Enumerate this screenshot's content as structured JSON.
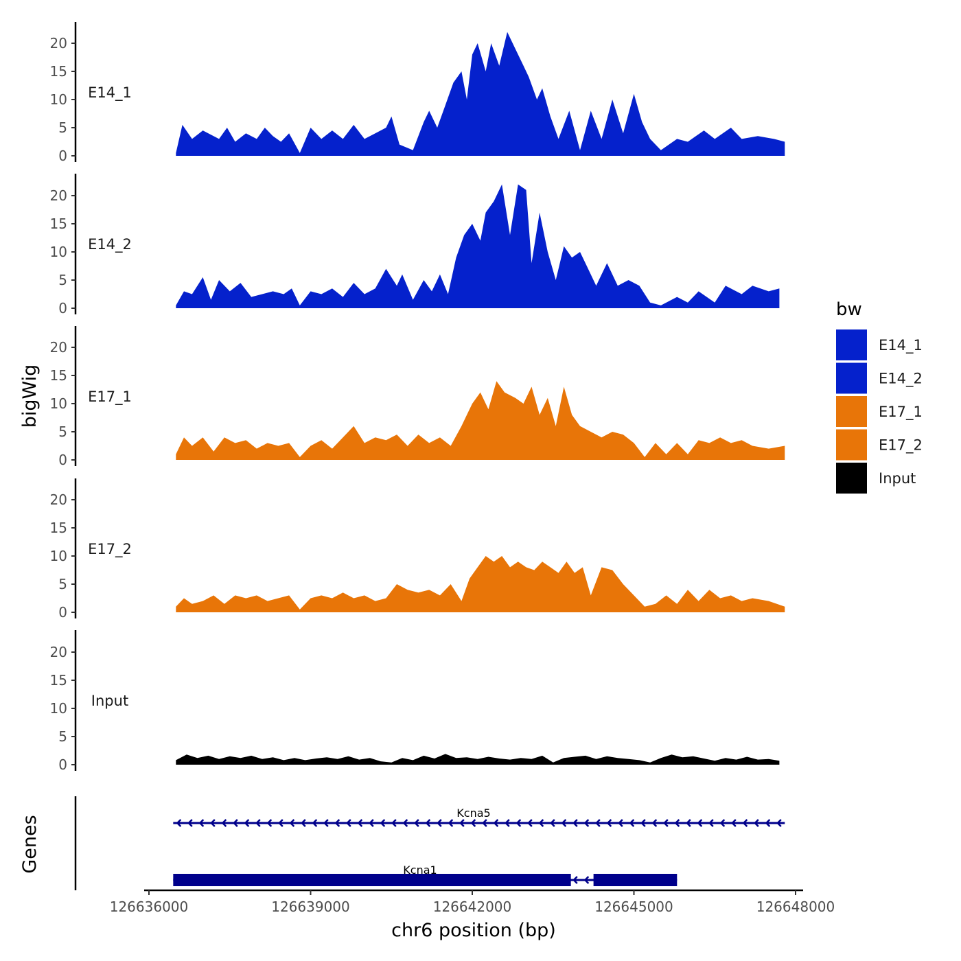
{
  "chart_data": {
    "type": "area",
    "ylabel": "bigWig",
    "xlabel": "chr6 position (bp)",
    "xlim": [
      126636000,
      126648000
    ],
    "x_ticks": [
      "126636000",
      "126639000",
      "126642000",
      "126645000",
      "126648000"
    ],
    "y_ticks": [
      "0",
      "5",
      "10",
      "15",
      "20"
    ],
    "ylim": [
      0,
      24
    ],
    "genes_label": "Genes",
    "legend": {
      "title": "bw",
      "entries": [
        {
          "label": "E14_1",
          "color": "#0521CC"
        },
        {
          "label": "E14_2",
          "color": "#0521CC"
        },
        {
          "label": "E17_1",
          "color": "#E87508"
        },
        {
          "label": "E17_2",
          "color": "#E87508"
        },
        {
          "label": "Input",
          "color": "#000000"
        }
      ]
    },
    "series": [
      {
        "name": "E14_1",
        "color": "#0521CC",
        "x": [
          126636500,
          126636620,
          126636800,
          126637000,
          126637300,
          126637450,
          126637600,
          126637800,
          126638000,
          126638150,
          126638300,
          126638450,
          126638600,
          126638800,
          126639000,
          126639200,
          126639400,
          126639600,
          126639800,
          126640000,
          126640200,
          126640400,
          126640500,
          126640650,
          126640900,
          126641100,
          126641200,
          126641350,
          126641500,
          126641650,
          126641800,
          126641900,
          126642000,
          126642100,
          126642250,
          126642350,
          126642500,
          126642650,
          126642800,
          126642950,
          126643050,
          126643200,
          126643300,
          126643450,
          126643600,
          126643800,
          126644000,
          126644200,
          126644400,
          126644600,
          126644800,
          126645000,
          126645150,
          126645300,
          126645500,
          126645800,
          126646000,
          126646300,
          126646500,
          126646800,
          126647000,
          126647300,
          126647600,
          126647800
        ],
        "y": [
          0.5,
          5.5,
          3,
          4.5,
          3,
          5,
          2.5,
          4,
          3,
          5,
          3.5,
          2.5,
          4,
          0.5,
          5,
          3,
          4.5,
          3,
          5.5,
          3,
          4,
          5,
          7,
          2,
          1,
          6,
          8,
          5,
          9,
          13,
          15,
          10,
          18,
          20,
          15,
          20,
          16,
          22,
          19,
          16,
          14,
          10,
          12,
          7,
          3,
          8,
          1,
          8,
          3,
          10,
          4,
          11,
          6,
          3,
          1,
          3,
          2.5,
          4.5,
          3,
          5,
          3,
          3.5,
          3,
          2.5
        ]
      },
      {
        "name": "E14_2",
        "color": "#0521CC",
        "x": [
          126636500,
          126636650,
          126636800,
          126637000,
          126637150,
          126637300,
          126637500,
          126637700,
          126637900,
          126638100,
          126638300,
          126638500,
          126638650,
          126638800,
          126639000,
          126639200,
          126639400,
          126639600,
          126639800,
          126640000,
          126640200,
          126640400,
          126640600,
          126640700,
          126640900,
          126641100,
          126641250,
          126641400,
          126641550,
          126641700,
          126641850,
          126642000,
          126642150,
          126642250,
          126642400,
          126642550,
          126642700,
          126642850,
          126643000,
          126643100,
          126643250,
          126643400,
          126643550,
          126643700,
          126643850,
          126644000,
          126644150,
          126644300,
          126644500,
          126644700,
          126644900,
          126645100,
          126645300,
          126645500,
          126645800,
          126646000,
          126646200,
          126646500,
          126646700,
          126647000,
          126647200,
          126647500,
          126647700
        ],
        "y": [
          0.5,
          3,
          2.5,
          5.5,
          1.5,
          5,
          3,
          4.5,
          2,
          2.5,
          3,
          2.5,
          3.5,
          0.5,
          3,
          2.5,
          3.5,
          2,
          4.5,
          2.5,
          3.5,
          7,
          4,
          6,
          1.5,
          5,
          3,
          6,
          2.5,
          9,
          13,
          15,
          12,
          17,
          19,
          22,
          13,
          22,
          21,
          8,
          17,
          10,
          5,
          11,
          9,
          10,
          7,
          4,
          8,
          4,
          5,
          4,
          1,
          0.5,
          2,
          1,
          3,
          1,
          4,
          2.5,
          4,
          3,
          3.5
        ]
      },
      {
        "name": "E17_1",
        "color": "#E87508",
        "x": [
          126636500,
          126636650,
          126636800,
          126637000,
          126637200,
          126637400,
          126637600,
          126637800,
          126638000,
          126638200,
          126638400,
          126638600,
          126638800,
          126639000,
          126639200,
          126639400,
          126639600,
          126639800,
          126640000,
          126640200,
          126640400,
          126640600,
          126640800,
          126641000,
          126641200,
          126641400,
          126641600,
          126641800,
          126641900,
          126642000,
          126642150,
          126642300,
          126642450,
          126642600,
          126642800,
          126642950,
          126643100,
          126643250,
          126643400,
          126643550,
          126643700,
          126643850,
          126644000,
          126644200,
          126644400,
          126644600,
          126644800,
          126645000,
          126645200,
          126645400,
          126645600,
          126645800,
          126646000,
          126646200,
          126646400,
          126646600,
          126646800,
          126647000,
          126647200,
          126647500,
          126647800
        ],
        "y": [
          1,
          4,
          2.5,
          4,
          1.5,
          4,
          3,
          3.5,
          2,
          3,
          2.5,
          3,
          0.5,
          2.5,
          3.5,
          2,
          4,
          6,
          3,
          4,
          3.5,
          4.5,
          2.5,
          4.5,
          3,
          4,
          2.5,
          6,
          8,
          10,
          12,
          9,
          14,
          12,
          11,
          10,
          13,
          8,
          11,
          6,
          13,
          8,
          6,
          5,
          4,
          5,
          4.5,
          3,
          0.5,
          3,
          1,
          3,
          1,
          3.5,
          3,
          4,
          3,
          3.5,
          2.5,
          2,
          2.5
        ]
      },
      {
        "name": "E17_2",
        "color": "#E87508",
        "x": [
          126636500,
          126636650,
          126636800,
          126637000,
          126637200,
          126637400,
          126637600,
          126637800,
          126638000,
          126638200,
          126638400,
          126638600,
          126638800,
          126639000,
          126639200,
          126639400,
          126639600,
          126639800,
          126640000,
          126640200,
          126640400,
          126640600,
          126640800,
          126641000,
          126641200,
          126641400,
          126641600,
          126641800,
          126641950,
          126642100,
          126642250,
          126642400,
          126642550,
          126642700,
          126642850,
          126643000,
          126643150,
          126643300,
          126643450,
          126643600,
          126643750,
          126643900,
          126644050,
          126644200,
          126644400,
          126644600,
          126644800,
          126645000,
          126645200,
          126645400,
          126645600,
          126645800,
          126646000,
          126646200,
          126646400,
          126646600,
          126646800,
          126647000,
          126647200,
          126647500,
          126647800
        ],
        "y": [
          1,
          2.5,
          1.5,
          2,
          3,
          1.5,
          3,
          2.5,
          3,
          2,
          2.5,
          3,
          0.5,
          2.5,
          3,
          2.5,
          3.5,
          2.5,
          3,
          2,
          2.5,
          5,
          4,
          3.5,
          4,
          3,
          5,
          2,
          6,
          8,
          10,
          9,
          10,
          8,
          9,
          8,
          7.5,
          9,
          8,
          7,
          9,
          7,
          8,
          3,
          8,
          7.5,
          5,
          3,
          1,
          1.5,
          3,
          1.5,
          4,
          2,
          4,
          2.5,
          3,
          2,
          2.5,
          2,
          1
        ]
      },
      {
        "name": "Input",
        "color": "#000000",
        "x": [
          126636500,
          126636700,
          126636900,
          126637100,
          126637300,
          126637500,
          126637700,
          126637900,
          126638100,
          126638300,
          126638500,
          126638700,
          126638900,
          126639100,
          126639300,
          126639500,
          126639700,
          126639900,
          126640100,
          126640300,
          126640500,
          126640700,
          126640900,
          126641100,
          126641300,
          126641500,
          126641700,
          126641900,
          126642100,
          126642300,
          126642500,
          126642700,
          126642900,
          126643100,
          126643300,
          126643500,
          126643700,
          126643900,
          126644100,
          126644300,
          126644500,
          126644700,
          126644900,
          126645100,
          126645300,
          126645500,
          126645700,
          126645900,
          126646100,
          126646300,
          126646500,
          126646700,
          126646900,
          126647100,
          126647300,
          126647500,
          126647700
        ],
        "y": [
          0.8,
          1.8,
          1.2,
          1.6,
          1,
          1.5,
          1.2,
          1.6,
          1,
          1.3,
          0.8,
          1.2,
          0.8,
          1.1,
          1.3,
          1,
          1.5,
          0.9,
          1.2,
          0.6,
          0.4,
          1.2,
          0.8,
          1.6,
          1.1,
          1.9,
          1.2,
          1.3,
          1,
          1.4,
          1.1,
          0.9,
          1.2,
          1,
          1.6,
          0.4,
          1.2,
          1.4,
          1.6,
          1,
          1.5,
          1.2,
          1,
          0.8,
          0.4,
          1.2,
          1.8,
          1.3,
          1.5,
          1.1,
          0.7,
          1.2,
          0.9,
          1.4,
          0.9,
          1,
          0.7
        ]
      }
    ],
    "genes": [
      {
        "name": "Kcna5",
        "strand": "-",
        "start": 126636450,
        "end": 126647800,
        "exons": []
      },
      {
        "name": "Kcna1",
        "strand": "-",
        "start": 126636450,
        "end": 126645800,
        "exons": [
          [
            126636450,
            126643830
          ],
          [
            126644250,
            126645800
          ]
        ]
      }
    ]
  }
}
